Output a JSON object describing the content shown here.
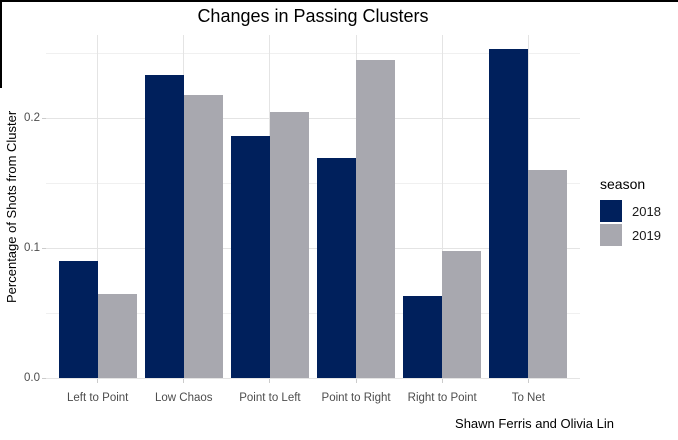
{
  "title": "Changes in Passing Clusters",
  "caption": "Shawn Ferris and Olivia Lin",
  "chart_data": {
    "type": "bar",
    "title": "Changes in Passing Clusters",
    "xlabel": "",
    "ylabel": "Percentage of Shots from Cluster",
    "caption": "Shawn Ferris and Olivia Lin",
    "grouping": "dodged",
    "categories": [
      "Left to Point",
      "Low Chaos",
      "Point to Left",
      "Point to Right",
      "Right to Point",
      "To Net"
    ],
    "series": [
      {
        "name": "2018",
        "color": "#00205c",
        "values": [
          0.09,
          0.233,
          0.186,
          0.169,
          0.063,
          0.253
        ]
      },
      {
        "name": "2019",
        "color": "#a8a8af",
        "values": [
          0.065,
          0.218,
          0.205,
          0.245,
          0.098,
          0.16
        ]
      }
    ],
    "legend": {
      "title": "season",
      "position": "right",
      "entries": [
        "2018",
        "2019"
      ]
    },
    "y_axis": {
      "ticks": [
        0,
        0.1,
        0.2
      ],
      "tick_labels": [
        "0.0",
        "0.1",
        "0.2"
      ],
      "minor_ticks": [
        0.05,
        0.15,
        0.25
      ],
      "lim": [
        0,
        0.264
      ]
    },
    "grid": {
      "enabled": true,
      "major_color": "#e4e4e4",
      "minor_color": "#f0f0f0",
      "background": "#ffffff",
      "vertical_major_at_categories": true
    }
  }
}
